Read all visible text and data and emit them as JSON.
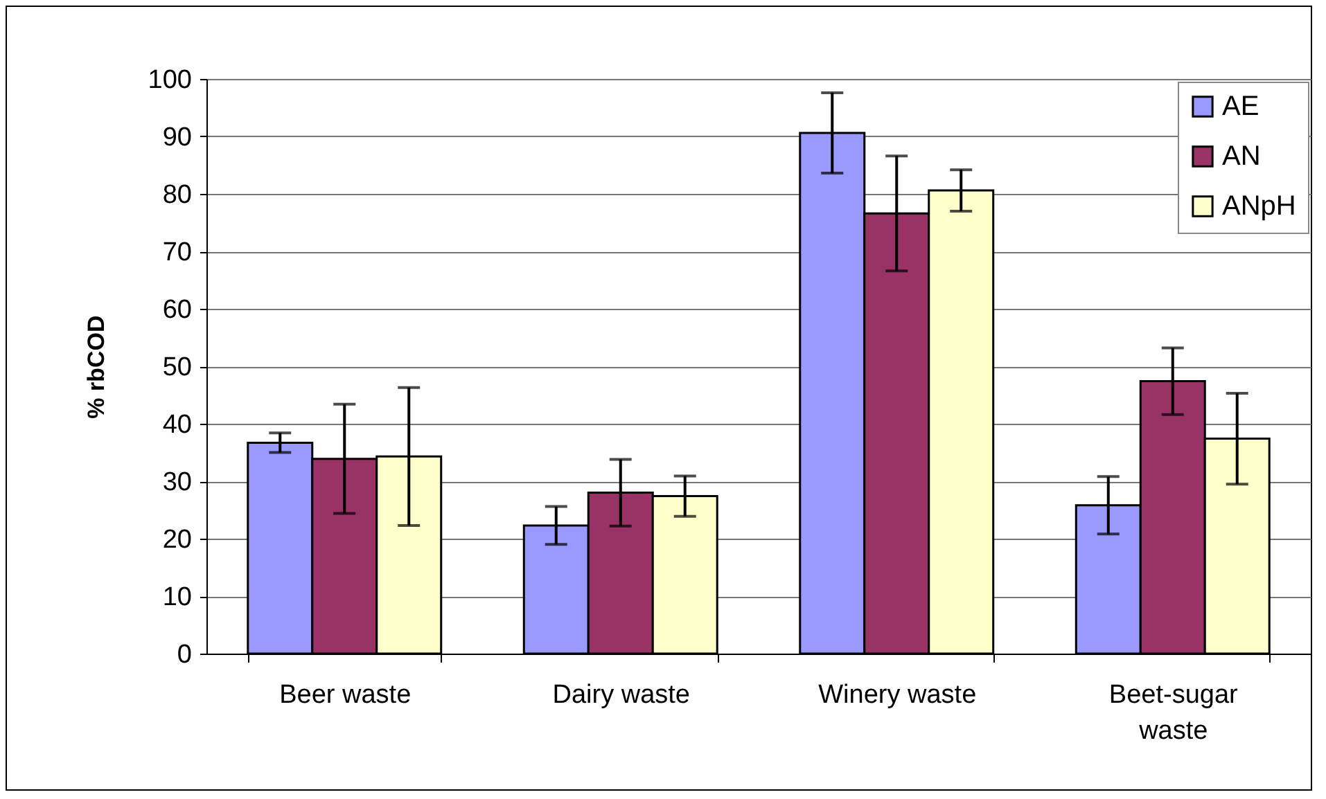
{
  "chart_data": {
    "type": "bar",
    "ylabel": "% rbCOD",
    "categories": [
      "Beer waste",
      "Dairy waste",
      "Winery waste",
      "Beet-sugar waste"
    ],
    "series": [
      {
        "name": "AE",
        "color": "#9999ff",
        "values": [
          36.7,
          22.3,
          90.6,
          25.8
        ],
        "errors": [
          1.7,
          3.3,
          7,
          5
        ]
      },
      {
        "name": "AN",
        "color": "#993366",
        "values": [
          33.9,
          28,
          76.6,
          47.4
        ],
        "errors": [
          9.5,
          5.8,
          10,
          5.8
        ]
      },
      {
        "name": "ANpH",
        "color": "#ffffcc",
        "values": [
          34.3,
          27.4,
          80.6,
          37.4
        ],
        "errors": [
          12,
          3.5,
          3.6,
          7.9
        ]
      }
    ],
    "ylim": [
      0,
      100
    ],
    "yticks": [
      0,
      10,
      20,
      30,
      40,
      50,
      60,
      70,
      80,
      90,
      100
    ],
    "grid": "y",
    "legend": "top right"
  }
}
